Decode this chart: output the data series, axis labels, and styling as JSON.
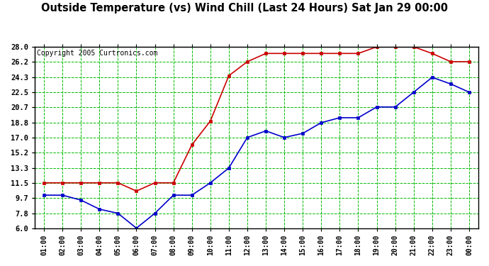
{
  "title": "Outside Temperature (vs) Wind Chill (Last 24 Hours) Sat Jan 29 00:00",
  "copyright": "Copyright 2005 Curtronics.com",
  "x_labels": [
    "01:00",
    "02:00",
    "03:00",
    "04:00",
    "05:00",
    "06:00",
    "07:00",
    "08:00",
    "09:00",
    "10:00",
    "11:00",
    "12:00",
    "13:00",
    "14:00",
    "15:00",
    "16:00",
    "17:00",
    "18:00",
    "19:00",
    "20:00",
    "21:00",
    "22:00",
    "23:00",
    "00:00"
  ],
  "temp_red": [
    11.5,
    11.5,
    11.5,
    11.5,
    11.5,
    10.5,
    11.5,
    11.5,
    16.1,
    19.0,
    24.5,
    26.2,
    27.2,
    27.2,
    27.2,
    27.2,
    27.2,
    27.2,
    28.0,
    28.0,
    28.0,
    27.2,
    26.2,
    26.2
  ],
  "temp_blue": [
    10.0,
    10.0,
    9.4,
    8.3,
    7.8,
    6.0,
    7.8,
    10.0,
    10.0,
    11.5,
    13.3,
    17.0,
    17.8,
    17.0,
    17.5,
    18.8,
    19.4,
    19.4,
    20.7,
    20.7,
    22.5,
    24.3,
    23.5,
    22.5
  ],
  "ylim_min": 6.0,
  "ylim_max": 28.0,
  "yticks": [
    6.0,
    7.8,
    9.7,
    11.5,
    13.3,
    15.2,
    17.0,
    18.8,
    20.7,
    22.5,
    24.3,
    26.2,
    28.0
  ],
  "ytick_labels": [
    "6.0",
    "7.8",
    "9.7",
    "11.5",
    "13.3",
    "15.2",
    "17.0",
    "18.8",
    "20.7",
    "22.5",
    "24.3",
    "26.2",
    "28.0"
  ],
  "red_color": "#cc0000",
  "blue_color": "#0000cc",
  "grid_color": "#00bb00",
  "bg_color": "#ffffff",
  "title_fontsize": 10.5,
  "copyright_fontsize": 7,
  "tick_fontsize": 7.5,
  "xtick_fontsize": 7
}
